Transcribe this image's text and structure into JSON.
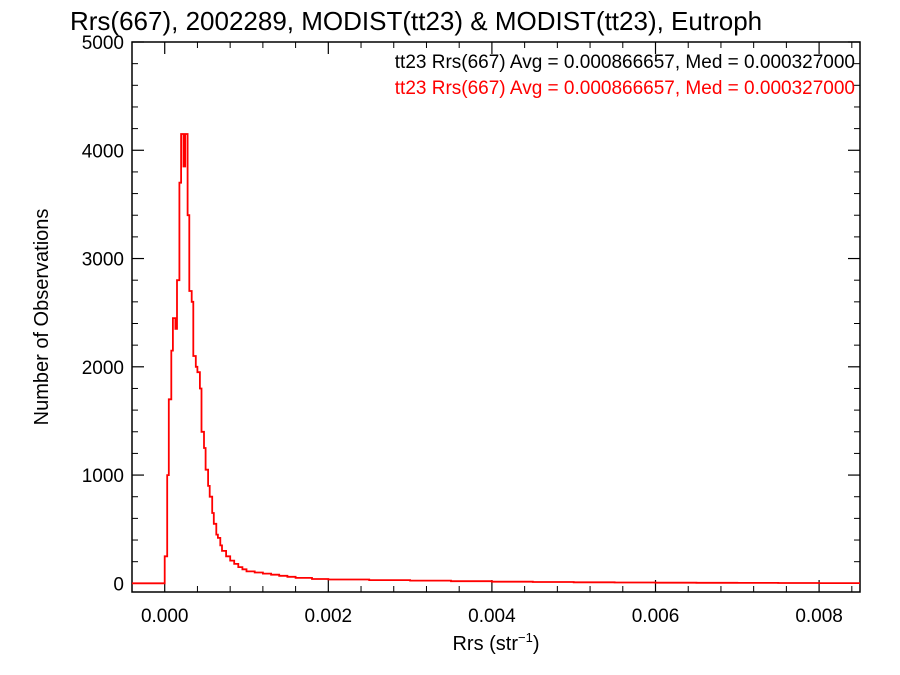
{
  "chart_data": {
    "type": "line",
    "title": "Rrs(667), 2002289, MODIST(tt23) & MODIST(tt23), Eutroph",
    "xlabel_main": "Rrs (str",
    "xlabel_sup": "−1",
    "xlabel_end": ")",
    "ylabel": "Number of Observations",
    "xlim": [
      -0.0004,
      0.0085
    ],
    "ylim": [
      -80,
      5000
    ],
    "xticks": [
      0.0,
      0.002,
      0.004,
      0.006,
      0.008
    ],
    "xtick_labels": [
      "0.000",
      "0.002",
      "0.004",
      "0.006",
      "0.008"
    ],
    "yticks": [
      0,
      1000,
      2000,
      3000,
      4000,
      5000
    ],
    "ytick_labels": [
      "0",
      "1000",
      "2000",
      "3000",
      "4000",
      "5000"
    ],
    "legend_position": "top-right",
    "legend": [
      {
        "text": "tt23 Rrs(667) Avg = 0.000866657, Med = 0.000327000",
        "color": "#000000"
      },
      {
        "text": "tt23 Rrs(667) Avg = 0.000866657, Med = 0.000327000",
        "color": "#ff0000"
      }
    ],
    "series": [
      {
        "color": "#ff0000",
        "x": [
          -0.0004,
          -5e-05,
          0.0,
          3e-05,
          5e-05,
          8e-05,
          0.0001,
          0.00013,
          0.00015,
          0.00018,
          0.0002,
          0.00023,
          0.00025,
          0.00028,
          0.0003,
          0.00033,
          0.00035,
          0.00038,
          0.0004,
          0.00043,
          0.00045,
          0.00048,
          0.0005,
          0.00053,
          0.00055,
          0.00058,
          0.0006,
          0.00063,
          0.00065,
          0.00068,
          0.0007,
          0.00075,
          0.0008,
          0.00085,
          0.0009,
          0.00095,
          0.001,
          0.0011,
          0.0012,
          0.0013,
          0.0014,
          0.0015,
          0.0016,
          0.0018,
          0.002,
          0.0025,
          0.003,
          0.0035,
          0.004,
          0.0045,
          0.005,
          0.0055,
          0.006,
          0.0065,
          0.007,
          0.0075,
          0.008,
          0.0085
        ],
        "y": [
          0,
          0,
          250,
          1000,
          1700,
          2150,
          2450,
          2350,
          2800,
          3700,
          4150,
          3850,
          4150,
          3400,
          2700,
          2600,
          2100,
          2000,
          1950,
          1800,
          1400,
          1250,
          1050,
          900,
          800,
          650,
          550,
          450,
          420,
          350,
          300,
          250,
          210,
          180,
          150,
          130,
          110,
          100,
          90,
          80,
          70,
          60,
          50,
          40,
          35,
          30,
          25,
          20,
          15,
          12,
          10,
          8,
          6,
          5,
          4,
          3,
          2,
          2
        ]
      }
    ]
  }
}
